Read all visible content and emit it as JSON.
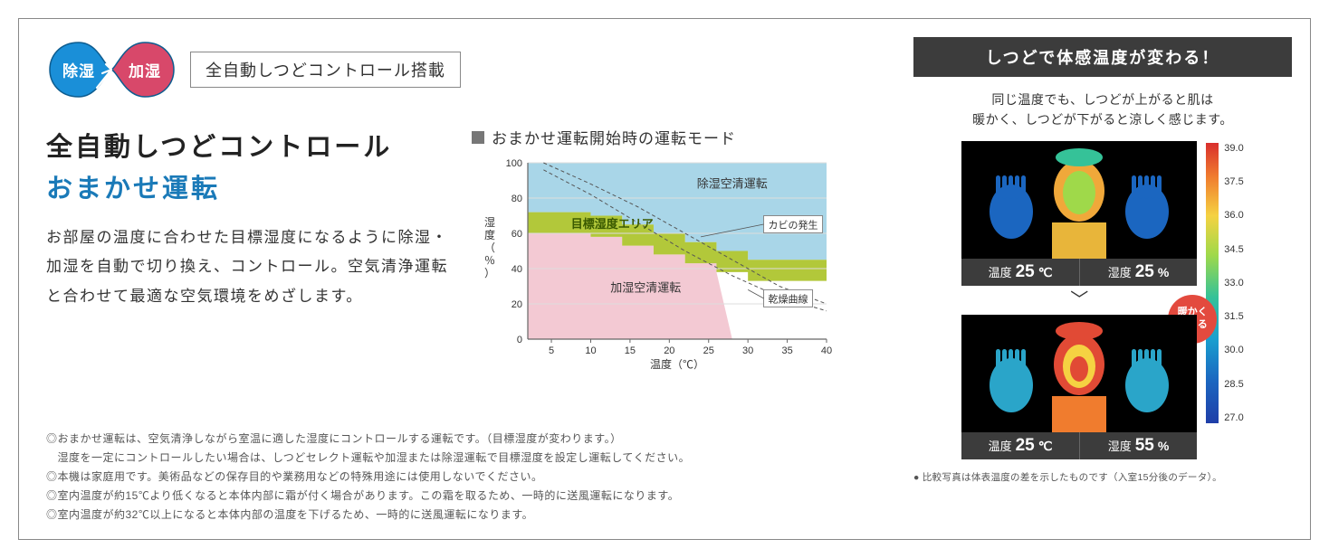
{
  "badge": {
    "left": "除湿",
    "right": "加湿"
  },
  "header_label": "全自動しつどコントロール搭載",
  "title": {
    "line1": "全自動しつどコントロール",
    "line2": "おまかせ運転"
  },
  "description": "お部屋の温度に合わせた目標湿度になるように除湿・加湿を自動で切り換え、コントロール。空気清浄運転と合わせて最適な空気環境をめざします。",
  "chart": {
    "title": "おまかせ運転開始時の運転モード",
    "y_label": "湿度（％）",
    "x_label": "温度（℃）",
    "y_ticks": [
      0,
      20,
      40,
      60,
      80,
      100
    ],
    "x_ticks": [
      5,
      10,
      15,
      20,
      25,
      30,
      35,
      40
    ],
    "x_range": [
      2,
      40
    ],
    "y_range": [
      0,
      100
    ],
    "ytick_fontsize": 11,
    "xtick_fontsize": 11,
    "axis_label_fontsize": 12,
    "region_dehumid": {
      "label": "除湿空清運転",
      "color": "#a9d6e8",
      "label_fontsize": 13,
      "label_color": "#333333"
    },
    "region_humid": {
      "label": "加湿空清運転",
      "color": "#f3c9d3",
      "label_fontsize": 13,
      "label_color": "#333333"
    },
    "region_target": {
      "label": "目標湿度エリア",
      "color": "#b2c83a",
      "label_fontsize": 13,
      "label_color": "#3a5a00",
      "label_fontweight": "bold"
    },
    "annot_mold": {
      "label": "カビの発生",
      "box_border": "#888888",
      "box_bg": "#ffffff",
      "fontsize": 11
    },
    "annot_dry": {
      "label": "乾燥曲線",
      "box_border": "#888888",
      "box_bg": "#ffffff",
      "fontsize": 11
    },
    "curve_style": {
      "stroke": "#555555",
      "dash": "4 3",
      "width": 1
    },
    "grid_color": "#dddddd",
    "axis_color": "#666666",
    "band_upper_points": [
      [
        2,
        72
      ],
      [
        10,
        72
      ],
      [
        10,
        70
      ],
      [
        14,
        70
      ],
      [
        14,
        65
      ],
      [
        18,
        65
      ],
      [
        18,
        60
      ],
      [
        22,
        60
      ],
      [
        22,
        55
      ],
      [
        26,
        55
      ],
      [
        26,
        50
      ],
      [
        30,
        50
      ],
      [
        30,
        45
      ],
      [
        40,
        45
      ]
    ],
    "band_lower_points": [
      [
        2,
        60
      ],
      [
        10,
        60
      ],
      [
        10,
        58
      ],
      [
        14,
        58
      ],
      [
        14,
        53
      ],
      [
        18,
        53
      ],
      [
        18,
        48
      ],
      [
        22,
        48
      ],
      [
        22,
        43
      ],
      [
        26,
        43
      ],
      [
        26,
        38
      ],
      [
        30,
        38
      ],
      [
        30,
        33
      ],
      [
        40,
        33
      ]
    ],
    "mold_curve": [
      [
        4,
        100
      ],
      [
        10,
        88
      ],
      [
        16,
        75
      ],
      [
        22,
        60
      ],
      [
        28,
        45
      ],
      [
        34,
        30
      ],
      [
        40,
        20
      ]
    ],
    "dry_curve": [
      [
        4,
        96
      ],
      [
        10,
        82
      ],
      [
        16,
        66
      ],
      [
        22,
        50
      ],
      [
        28,
        36
      ],
      [
        34,
        24
      ],
      [
        40,
        16
      ]
    ],
    "pink_limit_x": 28
  },
  "notes": [
    "◎おまかせ運転は、空気清浄しながら室温に適した湿度にコントロールする運転です。（目標湿度が変わります。）",
    "　湿度を一定にコントロールしたい場合は、しつどセレクト運転や加湿または除湿運転で目標湿度を設定し運転してください。",
    "◎本機は家庭用です。美術品などの保存目的や業務用などの特殊用途には使用しないでください。",
    "◎室内温度が約15℃より低くなると本体内部に霜が付く場合があります。この霜を取るため、一時的に送風運転になります。",
    "◎室内温度が約32℃以上になると本体内部の温度を下げるため、一時的に送風運転になります。"
  ],
  "right": {
    "header": "しつどで体感温度が変わる！",
    "sub": "同じ温度でも、しつどが上がると肌は\n暖かく、しつどが下がると涼しく感じます。",
    "card1": {
      "temp_label": "温度",
      "temp_val": "25",
      "temp_unit": "℃",
      "hum_label": "湿度",
      "hum_val": "25",
      "hum_unit": "%"
    },
    "card2": {
      "temp_label": "温度",
      "temp_val": "25",
      "temp_unit": "℃",
      "hum_label": "湿度",
      "hum_val": "55",
      "hum_unit": "%"
    },
    "warm_badge": "暖かく\n感じる",
    "colorbar_values": [
      "39.0",
      "37.5",
      "36.0",
      "34.5",
      "33.0",
      "31.5",
      "30.0",
      "28.5",
      "27.0"
    ],
    "footnote": "● 比較写真は体表温度の差を示したものです（入室15分後のデータ）。"
  },
  "colors": {
    "accent_blue": "#1a7ab8",
    "header_dark": "#3c3c3c",
    "warm_badge": "#e34a3e"
  }
}
